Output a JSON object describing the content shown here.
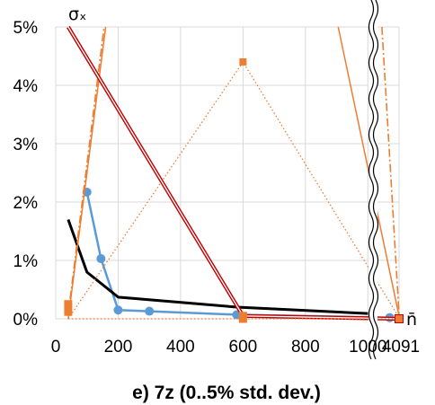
{
  "chart_data": {
    "type": "line",
    "title": "e) 7z (0..5% std. dev.)",
    "xlabel": "n̄",
    "ylabel": "σₓ",
    "xlim": [
      0,
      1100
    ],
    "ylim": [
      0,
      5
    ],
    "x_ticks": [
      "0",
      "200",
      "400",
      "600",
      "800",
      "1000",
      "4091"
    ],
    "y_ticks": [
      "0%",
      "1%",
      "2%",
      "3%",
      "4%",
      "5%"
    ],
    "axis_break_x": "4091",
    "grid": true,
    "legend": "none",
    "colors": {
      "blue": "#5b9bd5",
      "black": "#000000",
      "orange": "#ed7d31",
      "darkred": "#c00000"
    },
    "series": [
      {
        "color": "#5b9bd5",
        "style": "solid-markers",
        "x": [
          100,
          145,
          200,
          300,
          580,
          1070
        ],
        "y": [
          2.17,
          1.03,
          0.15,
          0.13,
          0.07,
          0.02
        ]
      },
      {
        "color": "#000000",
        "style": "solid",
        "x": [
          40,
          100,
          200,
          580,
          1000
        ],
        "y": [
          1.7,
          0.8,
          0.37,
          0.2,
          0.09
        ]
      },
      {
        "color": "#ed7d31",
        "style": "dotted-markers",
        "x": [
          40,
          600,
          1100
        ],
        "y": [
          0.0,
          4.4,
          0.02
        ]
      },
      {
        "color": "#ed7d31",
        "style": "solid",
        "x": [
          40,
          160
        ],
        "y": [
          0.0,
          5.0
        ]
      },
      {
        "color": "#ed7d31",
        "style": "solid",
        "x": [
          905,
          1100
        ],
        "y": [
          5.0,
          0.05
        ]
      },
      {
        "color": "#ed7d31",
        "style": "dashdot",
        "x": [
          40,
          155
        ],
        "y": [
          0.08,
          5.0
        ]
      },
      {
        "color": "#ed7d31",
        "style": "dashdot",
        "x": [
          1045,
          1100
        ],
        "y": [
          5.0,
          0.08
        ]
      },
      {
        "color": "#c00000",
        "style": "double",
        "x": [
          40,
          600,
          1100
        ],
        "y": [
          5.0,
          0.05,
          0.0
        ]
      },
      {
        "color": "#ed7d31",
        "style": "dotted",
        "x": [
          40,
          1100
        ],
        "y": [
          0.0,
          0.0
        ]
      },
      {
        "color": "#ed7d31",
        "style": "square-markers",
        "x": [
          40,
          40,
          600,
          600,
          1100
        ],
        "y": [
          0.25,
          0.12,
          0.05,
          0.0,
          0.0
        ]
      }
    ]
  }
}
